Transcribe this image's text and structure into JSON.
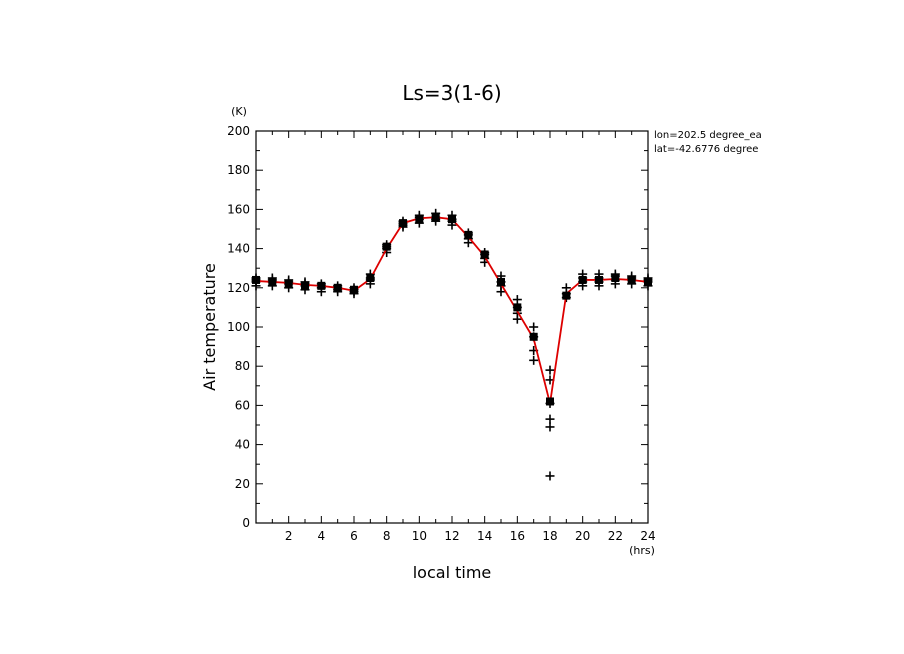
{
  "chart_data": {
    "type": "scatter",
    "title": "Ls=3(1-6)",
    "xlabel": "local time",
    "xunit": "(hrs)",
    "ylabel": "Air temperature",
    "yunit": "(K)",
    "xlim": [
      0,
      24
    ],
    "ylim": [
      0,
      200
    ],
    "xticks": [
      2,
      4,
      6,
      8,
      10,
      12,
      14,
      16,
      18,
      20,
      22,
      24
    ],
    "yticks": [
      0,
      20,
      40,
      60,
      80,
      100,
      120,
      140,
      160,
      180,
      200
    ],
    "annotations": [
      "lon=202.5 degree_ea",
      "lat=-42.6776 degree"
    ],
    "grid": false,
    "series": [
      {
        "kind": "scatter",
        "marker": "+",
        "color": "#000000",
        "points": [
          [
            0,
            121
          ],
          [
            0,
            123
          ],
          [
            0,
            124
          ],
          [
            0,
            125
          ],
          [
            1,
            121
          ],
          [
            1,
            123
          ],
          [
            1,
            124
          ],
          [
            1,
            125
          ],
          [
            2,
            120
          ],
          [
            2,
            122
          ],
          [
            2,
            123
          ],
          [
            2,
            124
          ],
          [
            3,
            119
          ],
          [
            3,
            121
          ],
          [
            3,
            122
          ],
          [
            3,
            123
          ],
          [
            4,
            118
          ],
          [
            4,
            120
          ],
          [
            4,
            121
          ],
          [
            4,
            122
          ],
          [
            5,
            118
          ],
          [
            5,
            119
          ],
          [
            5,
            120
          ],
          [
            5,
            121
          ],
          [
            6,
            117
          ],
          [
            6,
            118
          ],
          [
            6,
            119
          ],
          [
            6,
            120
          ],
          [
            7,
            122
          ],
          [
            7,
            124
          ],
          [
            7,
            125
          ],
          [
            7,
            127
          ],
          [
            8,
            138
          ],
          [
            8,
            140
          ],
          [
            8,
            141
          ],
          [
            8,
            142
          ],
          [
            9,
            151
          ],
          [
            9,
            152
          ],
          [
            9,
            153
          ],
          [
            9,
            154
          ],
          [
            10,
            153
          ],
          [
            10,
            155
          ],
          [
            10,
            156
          ],
          [
            10,
            157
          ],
          [
            11,
            154
          ],
          [
            11,
            155
          ],
          [
            11,
            156
          ],
          [
            11,
            158
          ],
          [
            12,
            152
          ],
          [
            12,
            154
          ],
          [
            12,
            155
          ],
          [
            12,
            157
          ],
          [
            13,
            143
          ],
          [
            13,
            145
          ],
          [
            13,
            147
          ],
          [
            13,
            148
          ],
          [
            14,
            133
          ],
          [
            14,
            135
          ],
          [
            14,
            137
          ],
          [
            14,
            138
          ],
          [
            15,
            118
          ],
          [
            15,
            121
          ],
          [
            15,
            123
          ],
          [
            15,
            126
          ],
          [
            16,
            104
          ],
          [
            16,
            107
          ],
          [
            16,
            110
          ],
          [
            16,
            114
          ],
          [
            17,
            83
          ],
          [
            17,
            88
          ],
          [
            17,
            95
          ],
          [
            17,
            100
          ],
          [
            18,
            24
          ],
          [
            18,
            49
          ],
          [
            18,
            53
          ],
          [
            18,
            61
          ],
          [
            18,
            73
          ],
          [
            18,
            78
          ],
          [
            19,
            115
          ],
          [
            19,
            117
          ],
          [
            19,
            120
          ],
          [
            20,
            121
          ],
          [
            20,
            123
          ],
          [
            20,
            125
          ],
          [
            20,
            127
          ],
          [
            21,
            121
          ],
          [
            21,
            123
          ],
          [
            21,
            125
          ],
          [
            21,
            127
          ],
          [
            22,
            122
          ],
          [
            22,
            124
          ],
          [
            22,
            126
          ],
          [
            22,
            127
          ],
          [
            23,
            122
          ],
          [
            23,
            124
          ],
          [
            23,
            125
          ],
          [
            23,
            126
          ],
          [
            24,
            121
          ],
          [
            24,
            123
          ],
          [
            24,
            124
          ],
          [
            24,
            125
          ]
        ]
      },
      {
        "kind": "line",
        "color": "#dd0000",
        "x": [
          0,
          1,
          2,
          3,
          4,
          5,
          6,
          7,
          8,
          9,
          10,
          11,
          12,
          13,
          14,
          15,
          16,
          17,
          18,
          19,
          20,
          21,
          22,
          23,
          24
        ],
        "y": [
          123.5,
          123,
          122.5,
          121.5,
          121,
          120,
          118.5,
          124.5,
          140,
          153,
          155.5,
          156,
          155,
          146,
          136,
          122,
          108,
          94,
          61,
          117,
          124,
          124,
          124.5,
          124,
          123
        ]
      },
      {
        "kind": "squares",
        "color": "#000000",
        "points": [
          [
            0,
            124
          ],
          [
            1,
            123
          ],
          [
            2,
            122
          ],
          [
            3,
            121
          ],
          [
            4,
            121
          ],
          [
            5,
            120
          ],
          [
            6,
            119
          ],
          [
            7,
            125
          ],
          [
            8,
            141
          ],
          [
            9,
            153
          ],
          [
            10,
            155
          ],
          [
            11,
            156
          ],
          [
            12,
            155
          ],
          [
            13,
            147
          ],
          [
            14,
            137
          ],
          [
            15,
            123
          ],
          [
            16,
            110
          ],
          [
            17,
            95
          ],
          [
            18,
            62
          ],
          [
            19,
            116
          ],
          [
            20,
            124
          ],
          [
            21,
            124
          ],
          [
            22,
            125
          ],
          [
            23,
            124
          ],
          [
            24,
            123
          ]
        ]
      }
    ]
  }
}
